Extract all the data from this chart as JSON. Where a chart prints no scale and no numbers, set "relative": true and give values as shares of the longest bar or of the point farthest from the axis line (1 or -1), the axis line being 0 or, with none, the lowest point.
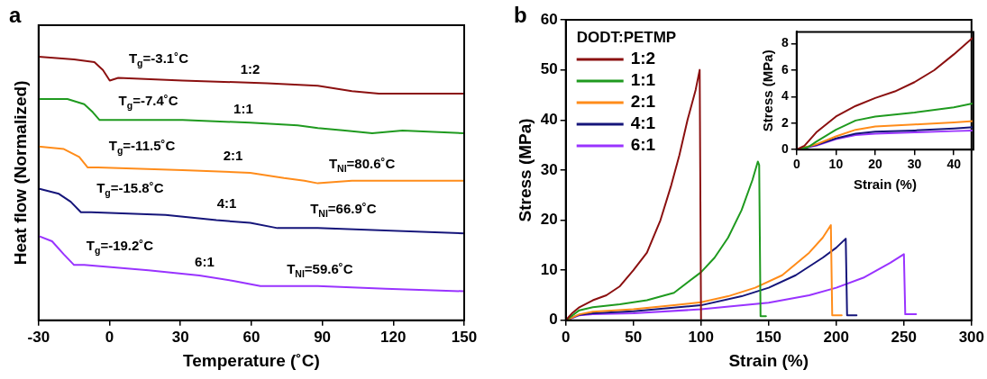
{
  "chart_data": [
    {
      "type": "line",
      "title": "a",
      "xlabel": "Temperature (˚C)",
      "ylabel": "Heat flow (Normalized)",
      "relative": true,
      "xlim": [
        -30,
        150
      ],
      "xticks": [
        -30,
        0,
        30,
        60,
        90,
        120,
        150
      ],
      "grid": false,
      "legend": false,
      "series": [
        {
          "color": "#8b1010",
          "x": [
            -30,
            -15,
            -6.4,
            -2.8,
            0.1,
            3.7,
            30.9,
            66.7,
            88.1,
            102.5,
            113.9,
            131.1,
            150
          ],
          "values": [
            1.0,
            0.99,
            0.98,
            0.95,
            0.91,
            0.92,
            0.91,
            0.9,
            0.89,
            0.87,
            0.86,
            0.86,
            0.86
          ]
        },
        {
          "color": "#1f9a1f",
          "x": [
            -30,
            -17.8,
            -10.7,
            -7.1,
            -4.2,
            -0.6,
            30.9,
            59.5,
            79.6,
            88.1,
            99.6,
            111.1,
            123.9,
            150
          ],
          "values": [
            0.84,
            0.84,
            0.82,
            0.79,
            0.76,
            0.76,
            0.76,
            0.75,
            0.74,
            0.73,
            0.72,
            0.71,
            0.72,
            0.71
          ]
        },
        {
          "color": "#ff8c1a",
          "x": [
            -30,
            -19.3,
            -12.8,
            -9.2,
            -4.9,
            30.9,
            59.5,
            73.8,
            82.4,
            88.1,
            102.5,
            150
          ],
          "values": [
            0.66,
            0.65,
            0.62,
            0.58,
            0.58,
            0.57,
            0.56,
            0.54,
            0.53,
            0.52,
            0.53,
            0.53
          ]
        },
        {
          "color": "#15157a",
          "x": [
            -30,
            -21.4,
            -16.4,
            -12.1,
            -7.8,
            23.7,
            45.2,
            59.5,
            71.0,
            88.1,
            150
          ],
          "values": [
            0.5,
            0.48,
            0.45,
            0.41,
            0.41,
            0.4,
            0.38,
            0.37,
            0.35,
            0.35,
            0.33
          ]
        },
        {
          "color": "#9933ff",
          "x": [
            -30,
            -24.3,
            -19.3,
            -15.0,
            -10.7,
            16.5,
            38.0,
            52.3,
            63.8,
            88.1,
            116.8,
            150
          ],
          "values": [
            0.32,
            0.3,
            0.25,
            0.21,
            0.21,
            0.19,
            0.17,
            0.15,
            0.13,
            0.13,
            0.12,
            0.11
          ]
        }
      ],
      "annotations": [
        "T$_{g}$=-3.1˚C",
        "1:2",
        "T$_{g}$=-7.4˚C",
        "1:1",
        "T$_{g}$=-11.5˚C",
        "2:1",
        "T$_{NI}$=80.6˚C",
        "T$_{g}$=-15.8˚C",
        "4:1",
        "T$_{NI}$=66.9˚C",
        "T$_{g}$=-19.2˚C",
        "6:1",
        "T$_{NI}$=59.6˚C"
      ]
    },
    {
      "type": "line",
      "title": "b",
      "xlabel": "Strain (%)",
      "ylabel": "Stress (MPa)",
      "xlim": [
        0,
        300
      ],
      "xticks": [
        0,
        50,
        100,
        150,
        200,
        250,
        300
      ],
      "ylim": [
        0,
        60
      ],
      "yticks": [
        0,
        10,
        20,
        30,
        40,
        50,
        60
      ],
      "grid": false,
      "legend": "top left",
      "legend_title": "DODT:PETMP",
      "series": [
        {
          "name": "1:2",
          "color": "#8b1010",
          "x": [
            0,
            5,
            10,
            20,
            30,
            40,
            50,
            60,
            70,
            78,
            84,
            90,
            96,
            99,
            100
          ],
          "values": [
            0,
            1.5,
            2.6,
            4,
            5,
            6.8,
            10,
            13.5,
            20,
            27,
            33,
            40,
            46,
            50,
            0.3
          ]
        },
        {
          "name": "1:1",
          "color": "#1f9a1f",
          "x": [
            0,
            10,
            20,
            40,
            60,
            80,
            100,
            110,
            120,
            130,
            138,
            142,
            143,
            144,
            148
          ],
          "values": [
            0,
            2,
            2.6,
            3.2,
            4,
            5.5,
            9.6,
            12.5,
            16.5,
            22,
            28,
            31.7,
            31,
            0.8,
            0.8
          ]
        },
        {
          "name": "2:1",
          "color": "#ff8c1a",
          "x": [
            0,
            10,
            20,
            50,
            80,
            100,
            120,
            140,
            160,
            180,
            190,
            196,
            197,
            204
          ],
          "values": [
            0,
            1.2,
            1.7,
            2.2,
            3,
            3.6,
            4.8,
            6.5,
            9,
            13.5,
            16.5,
            19,
            1,
            1
          ]
        },
        {
          "name": "4:1",
          "color": "#15157a",
          "x": [
            0,
            10,
            20,
            50,
            100,
            130,
            150,
            170,
            190,
            200,
            207,
            208,
            215
          ],
          "values": [
            0,
            1.1,
            1.4,
            1.8,
            3,
            4.8,
            6.5,
            9,
            12.5,
            14.5,
            16.3,
            1,
            1
          ]
        },
        {
          "name": "6:1",
          "color": "#9933ff",
          "x": [
            0,
            10,
            20,
            50,
            100,
            150,
            180,
            200,
            220,
            240,
            250,
            251,
            259
          ],
          "values": [
            0,
            1,
            1.2,
            1.4,
            2.2,
            3.5,
            5,
            6.5,
            8.5,
            11.5,
            13.2,
            1.2,
            1.2
          ]
        }
      ]
    },
    {
      "type": "line",
      "xlabel": "Strain (%)",
      "ylabel": "Stress (MPa)",
      "xlim": [
        0,
        45
      ],
      "xticks": [
        0,
        10,
        20,
        30,
        40
      ],
      "ylim": [
        0,
        8.9
      ],
      "yticks": [
        0,
        2,
        4,
        6,
        8
      ],
      "grid": false,
      "legend": false,
      "series": [
        {
          "color": "#8b1010",
          "x": [
            0,
            2,
            5,
            10,
            15,
            20,
            25,
            30,
            35,
            40,
            45
          ],
          "values": [
            0,
            0.3,
            1.3,
            2.5,
            3.3,
            3.9,
            4.4,
            5.1,
            6,
            7.2,
            8.5
          ]
        },
        {
          "color": "#1f9a1f",
          "x": [
            0,
            3,
            5,
            10,
            15,
            20,
            30,
            40,
            45
          ],
          "values": [
            0,
            0.2,
            0.6,
            1.5,
            2.2,
            2.5,
            2.8,
            3.2,
            3.5
          ]
        },
        {
          "color": "#ff8c1a",
          "x": [
            0,
            5,
            10,
            15,
            20,
            30,
            40,
            45
          ],
          "values": [
            0,
            0.4,
            1.0,
            1.5,
            1.75,
            1.9,
            2.05,
            2.15
          ]
        },
        {
          "color": "#15157a",
          "x": [
            0,
            5,
            10,
            15,
            20,
            30,
            40,
            45
          ],
          "values": [
            0,
            0.35,
            0.85,
            1.2,
            1.35,
            1.45,
            1.6,
            1.7
          ]
        },
        {
          "color": "#9933ff",
          "x": [
            0,
            5,
            10,
            15,
            20,
            30,
            40,
            45
          ],
          "values": [
            0,
            0.3,
            0.8,
            1.1,
            1.2,
            1.3,
            1.4,
            1.45
          ]
        }
      ]
    }
  ]
}
